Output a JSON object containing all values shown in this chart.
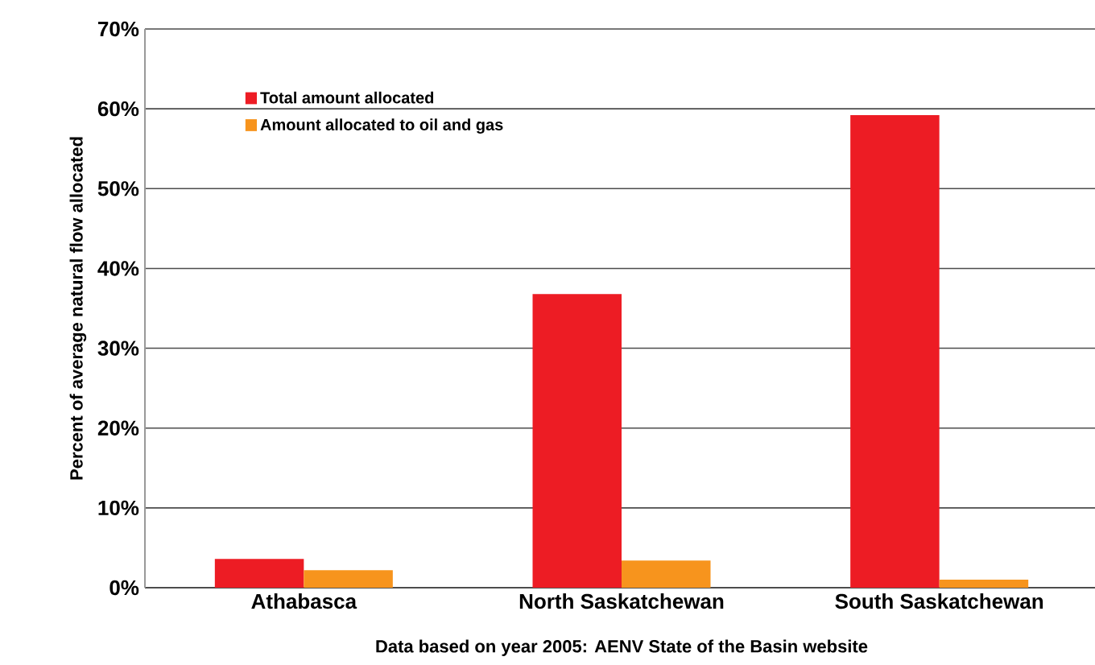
{
  "chart_data": {
    "type": "bar",
    "ylabel": "Percent of average natural flow allocated",
    "categories": [
      "Athabasca",
      "North Saskatchewan",
      "South Saskatchewan"
    ],
    "series": [
      {
        "name": "Total amount allocated",
        "color": "#ed1c24",
        "values": [
          3.6,
          36.8,
          59.2
        ]
      },
      {
        "name": "Amount allocated to oil and gas",
        "color": "#f7941d",
        "values": [
          2.2,
          3.4,
          1.0
        ]
      }
    ],
    "ylim": [
      0,
      70
    ],
    "yticks": [
      {
        "value": 0,
        "label": "0%"
      },
      {
        "value": 10,
        "label": "10%"
      },
      {
        "value": 20,
        "label": "20%"
      },
      {
        "value": 30,
        "label": "30%"
      },
      {
        "value": 40,
        "label": "40%"
      },
      {
        "value": 50,
        "label": "50%"
      },
      {
        "value": 60,
        "label": "60%"
      },
      {
        "value": 70,
        "label": "70%"
      }
    ],
    "grid": "y",
    "legend": "top left",
    "annotations": [
      "Data based on year 2005: AENV State of the Basin website"
    ]
  }
}
